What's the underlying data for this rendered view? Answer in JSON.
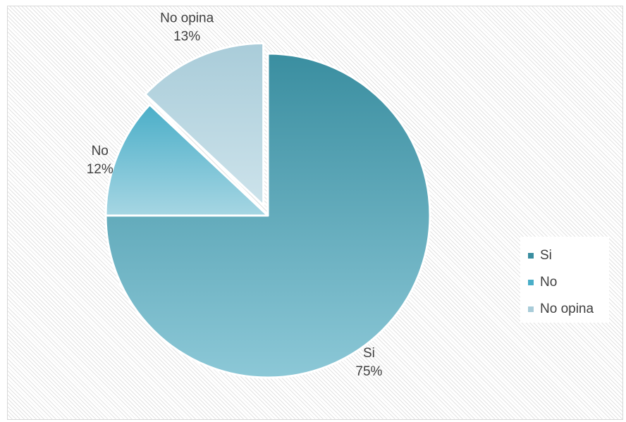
{
  "chart_data": {
    "type": "pie",
    "title": "",
    "categories": [
      "Si",
      "No",
      "No opina"
    ],
    "values": [
      75,
      12,
      13
    ],
    "labels": [
      "75%",
      "12%",
      "13%"
    ],
    "exploded": [
      "No opina"
    ],
    "legend_position": "right",
    "colors": {
      "Si": [
        "#3a8ea0",
        "#8cc8d7"
      ],
      "No": [
        "#4aaec8",
        "#a6d6e3"
      ],
      "No opina": [
        "#a9ccd9",
        "#cde3eb"
      ]
    }
  },
  "legend": [
    {
      "label": "Si",
      "color": "#3a8ea0"
    },
    {
      "label": "No",
      "color": "#4aaec8"
    },
    {
      "label": "No opina",
      "color": "#a9ccd9"
    }
  ]
}
